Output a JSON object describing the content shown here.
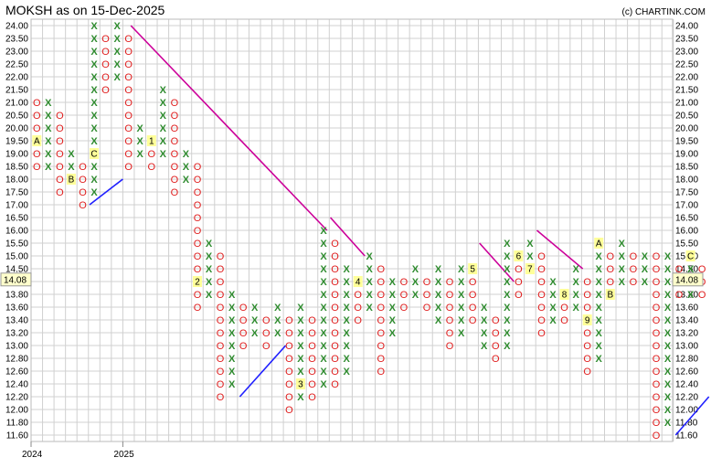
{
  "chart_data": {
    "type": "point-and-figure",
    "title": "MOKSH as on 15-Dec-2025",
    "credit": "(c) CHARTINK.COM",
    "box_size": 0.2,
    "y_ticks": [
      "24.00",
      "23.50",
      "23.00",
      "22.50",
      "22.00",
      "21.50",
      "21.00",
      "20.50",
      "20.00",
      "19.50",
      "19.00",
      "18.50",
      "18.00",
      "17.50",
      "17.00",
      "16.50",
      "16.00",
      "15.50",
      "15.00",
      "14.50",
      "14.00",
      "13.80",
      "13.60",
      "13.40",
      "13.20",
      "13.00",
      "12.80",
      "12.60",
      "12.40",
      "12.20",
      "12.00",
      "11.80",
      "11.60"
    ],
    "x_labels": [
      {
        "col": 0,
        "text": "2024"
      },
      {
        "col": 8,
        "text": "2025"
      }
    ],
    "current_price": "14.08",
    "columns": [
      {
        "type": "O",
        "top": "21.00",
        "bottom": "18.50",
        "markers": [
          {
            "at": "19.50",
            "label": "A"
          }
        ]
      },
      {
        "type": "X",
        "top": "21.00",
        "bottom": "18.50"
      },
      {
        "type": "O",
        "top": "20.50",
        "bottom": "17.50"
      },
      {
        "type": "X",
        "top": "19.00",
        "bottom": "18.00",
        "markers": [
          {
            "at": "18.00",
            "label": "B"
          }
        ]
      },
      {
        "type": "O",
        "top": "18.50",
        "bottom": "17.00"
      },
      {
        "type": "X",
        "top": "24.00",
        "bottom": "17.50",
        "markers": [
          {
            "at": "19.00",
            "label": "C"
          }
        ]
      },
      {
        "type": "O",
        "top": "23.50",
        "bottom": "21.50"
      },
      {
        "type": "X",
        "top": "24.00",
        "bottom": "22.00"
      },
      {
        "type": "O",
        "top": "23.50",
        "bottom": "18.50"
      },
      {
        "type": "X",
        "top": "20.00",
        "bottom": "19.00"
      },
      {
        "type": "O",
        "top": "19.50",
        "bottom": "18.50",
        "markers": [
          {
            "at": "19.50",
            "label": "1"
          }
        ]
      },
      {
        "type": "X",
        "top": "21.50",
        "bottom": "19.00"
      },
      {
        "type": "O",
        "top": "21.00",
        "bottom": "17.50"
      },
      {
        "type": "X",
        "top": "19.00",
        "bottom": "18.00"
      },
      {
        "type": "O",
        "top": "18.50",
        "bottom": "13.60",
        "markers": [
          {
            "at": "14.00",
            "label": "2"
          }
        ]
      },
      {
        "type": "X",
        "top": "15.50",
        "bottom": "13.80"
      },
      {
        "type": "O",
        "top": "15.00",
        "bottom": "12.20"
      },
      {
        "type": "X",
        "top": "13.80",
        "bottom": "12.40"
      },
      {
        "type": "O",
        "top": "13.60",
        "bottom": "13.00"
      },
      {
        "type": "X",
        "top": "13.60",
        "bottom": "13.20"
      },
      {
        "type": "O",
        "top": "13.40",
        "bottom": "13.00"
      },
      {
        "type": "X",
        "top": "13.60",
        "bottom": "13.20"
      },
      {
        "type": "O",
        "top": "13.40",
        "bottom": "12.00"
      },
      {
        "type": "X",
        "top": "13.60",
        "bottom": "12.20",
        "markers": [
          {
            "at": "12.40",
            "label": "3"
          }
        ]
      },
      {
        "type": "O",
        "top": "13.40",
        "bottom": "12.20"
      },
      {
        "type": "X",
        "top": "16.00",
        "bottom": "12.40"
      },
      {
        "type": "O",
        "top": "15.50",
        "bottom": "12.40"
      },
      {
        "type": "X",
        "top": "14.50",
        "bottom": "12.60"
      },
      {
        "type": "O",
        "top": "14.00",
        "bottom": "13.40",
        "markers": [
          {
            "at": "14.00",
            "label": "4"
          }
        ]
      },
      {
        "type": "X",
        "top": "15.00",
        "bottom": "13.60"
      },
      {
        "type": "O",
        "top": "14.50",
        "bottom": "12.60"
      },
      {
        "type": "X",
        "top": "14.00",
        "bottom": "13.20"
      },
      {
        "type": "O",
        "top": "14.00",
        "bottom": "13.60"
      },
      {
        "type": "X",
        "top": "14.50",
        "bottom": "13.80"
      },
      {
        "type": "O",
        "top": "14.00",
        "bottom": "13.60"
      },
      {
        "type": "X",
        "top": "14.50",
        "bottom": "13.40"
      },
      {
        "type": "O",
        "top": "14.00",
        "bottom": "13.00"
      },
      {
        "type": "X",
        "top": "14.50",
        "bottom": "13.20"
      },
      {
        "type": "O",
        "top": "14.50",
        "bottom": "13.40",
        "markers": [
          {
            "at": "14.50",
            "label": "5"
          }
        ]
      },
      {
        "type": "X",
        "top": "13.60",
        "bottom": "13.00"
      },
      {
        "type": "O",
        "top": "13.40",
        "bottom": "12.80"
      },
      {
        "type": "X",
        "top": "15.50",
        "bottom": "13.00"
      },
      {
        "type": "O",
        "top": "15.00",
        "bottom": "13.80",
        "markers": [
          {
            "at": "15.00",
            "label": "6"
          }
        ]
      },
      {
        "type": "X",
        "top": "15.50",
        "bottom": "14.50",
        "markers": [
          {
            "at": "14.50",
            "label": "7"
          }
        ]
      },
      {
        "type": "O",
        "top": "15.00",
        "bottom": "13.20"
      },
      {
        "type": "X",
        "top": "14.00",
        "bottom": "13.40"
      },
      {
        "type": "O",
        "top": "13.80",
        "bottom": "13.40",
        "markers": [
          {
            "at": "13.80",
            "label": "8"
          }
        ]
      },
      {
        "type": "X",
        "top": "14.50",
        "bottom": "13.60"
      },
      {
        "type": "O",
        "top": "14.00",
        "bottom": "12.60",
        "markers": [
          {
            "at": "13.40",
            "label": "9"
          }
        ]
      },
      {
        "type": "X",
        "top": "15.50",
        "bottom": "12.80",
        "markers": [
          {
            "at": "15.50",
            "label": "A"
          }
        ]
      },
      {
        "type": "O",
        "top": "15.00",
        "bottom": "13.80",
        "markers": [
          {
            "at": "13.80",
            "label": "B"
          }
        ]
      },
      {
        "type": "X",
        "top": "15.50",
        "bottom": "14.00"
      },
      {
        "type": "O",
        "top": "15.00",
        "bottom": "14.00"
      },
      {
        "type": "X",
        "top": "15.00",
        "bottom": "14.00"
      },
      {
        "type": "O",
        "top": "15.00",
        "bottom": "11.60"
      },
      {
        "type": "X",
        "top": "15.00",
        "bottom": "11.80"
      },
      {
        "type": "O",
        "top": "14.50",
        "bottom": "13.80"
      },
      {
        "type": "X",
        "top": "15.00",
        "bottom": "13.80",
        "markers": [
          {
            "at": "15.00",
            "label": "C"
          }
        ]
      },
      {
        "type": "O",
        "top": "14.50",
        "bottom": "13.80"
      }
    ],
    "trendlines": [
      {
        "color": "#cc0099",
        "from": {
          "col": 8.2,
          "price": "24.00"
        },
        "to": {
          "col": 25.3,
          "price": "16.00"
        }
      },
      {
        "color": "#cc0099",
        "from": {
          "col": 25.6,
          "price": "16.50"
        },
        "to": {
          "col": 28.6,
          "price": "15.00"
        }
      },
      {
        "color": "#cc0099",
        "from": {
          "col": 38.6,
          "price": "15.50"
        },
        "to": {
          "col": 41.6,
          "price": "14.00"
        }
      },
      {
        "color": "#cc0099",
        "from": {
          "col": 43.6,
          "price": "16.00"
        },
        "to": {
          "col": 47.6,
          "price": "14.50"
        }
      },
      {
        "color": "#2020ff",
        "from": {
          "col": 4.6,
          "price": "17.00"
        },
        "to": {
          "col": 7.5,
          "price": "18.00"
        }
      },
      {
        "color": "#2020ff",
        "from": {
          "col": 17.7,
          "price": "12.20"
        },
        "to": {
          "col": 21.7,
          "price": "13.00"
        }
      },
      {
        "color": "#2020ff",
        "from": {
          "col": 55.7,
          "price": "11.60"
        },
        "to": {
          "col": 58.6,
          "price": "12.20"
        }
      }
    ]
  }
}
